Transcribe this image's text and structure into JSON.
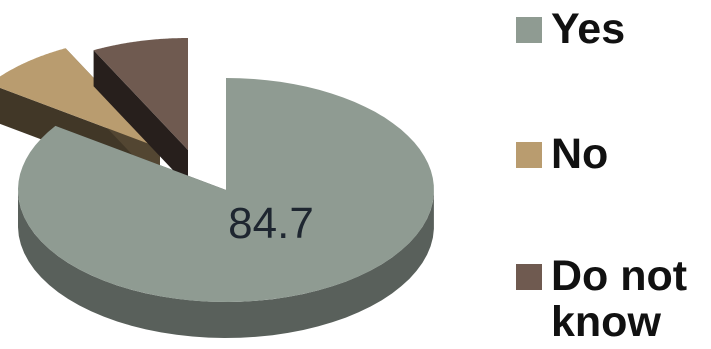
{
  "chart_data": {
    "type": "pie",
    "style": "3d-exploded",
    "categories": [
      "Yes",
      "No",
      "Do not know"
    ],
    "values": [
      84.7,
      7.8,
      7.5
    ],
    "data_labels": [
      "84.7",
      "",
      ""
    ],
    "colors": [
      "#8f9b92",
      "#b99c6f",
      "#6f5a50"
    ],
    "legend_position": "right",
    "title": ""
  }
}
